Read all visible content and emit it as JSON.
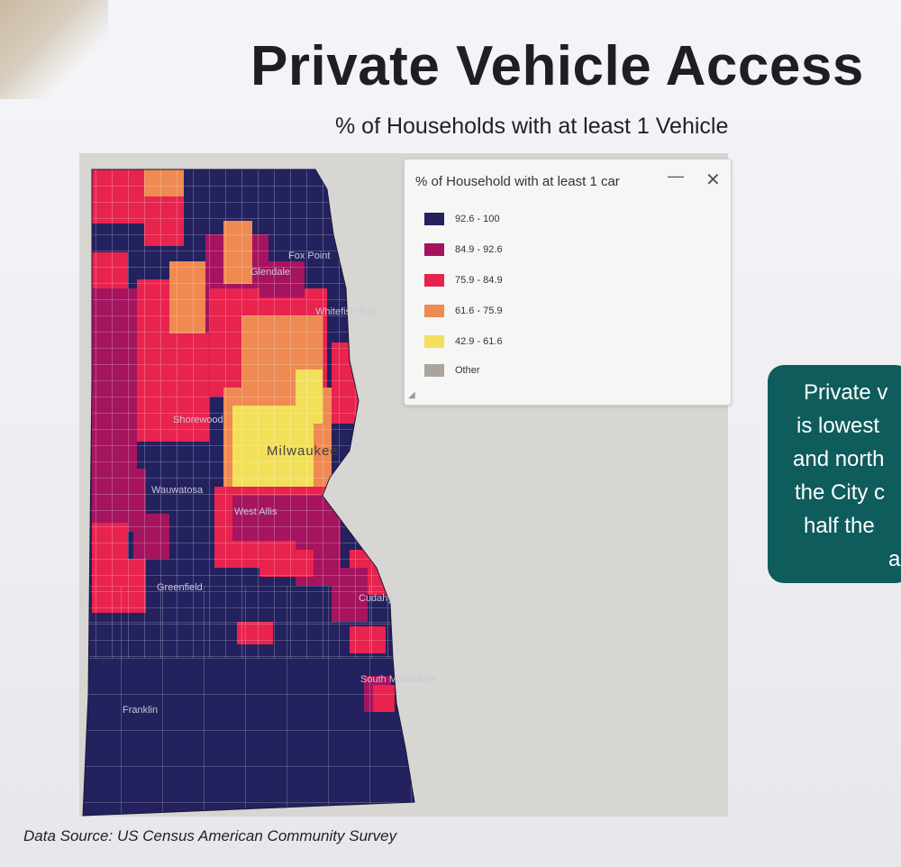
{
  "header": {
    "title": "Private Vehicle Access",
    "subtitle": "% of Households with at least 1 Vehicle"
  },
  "legend": {
    "title": "% of Household with at least 1 car",
    "minimize_label": "—",
    "close_label": "✕",
    "items": [
      {
        "label": "92.6 - 100",
        "color": "#23215e"
      },
      {
        "label": "84.9 - 92.6",
        "color": "#a5145f"
      },
      {
        "label": "75.9 - 84.9",
        "color": "#e8234e"
      },
      {
        "label": "61.6 - 75.9",
        "color": "#ef8a52"
      },
      {
        "label": "42.9 - 61.6",
        "color": "#f2e05a"
      },
      {
        "label": "Other",
        "color": "#aaa49c"
      }
    ]
  },
  "map": {
    "city_label": "Milwaukee",
    "place_labels": [
      "Glendale",
      "Whitefish Bay",
      "Shorewood",
      "Wauwatosa",
      "West Allis",
      "Greenfield",
      "Cudahy",
      "South Milwaukee",
      "Franklin",
      "Fox Point"
    ]
  },
  "callout": {
    "lines": [
      "Private v",
      "is lowest",
      "and north",
      "the City c",
      "half the",
      "a"
    ]
  },
  "footer": {
    "source": "Data Source:  US Census American Community Survey"
  }
}
